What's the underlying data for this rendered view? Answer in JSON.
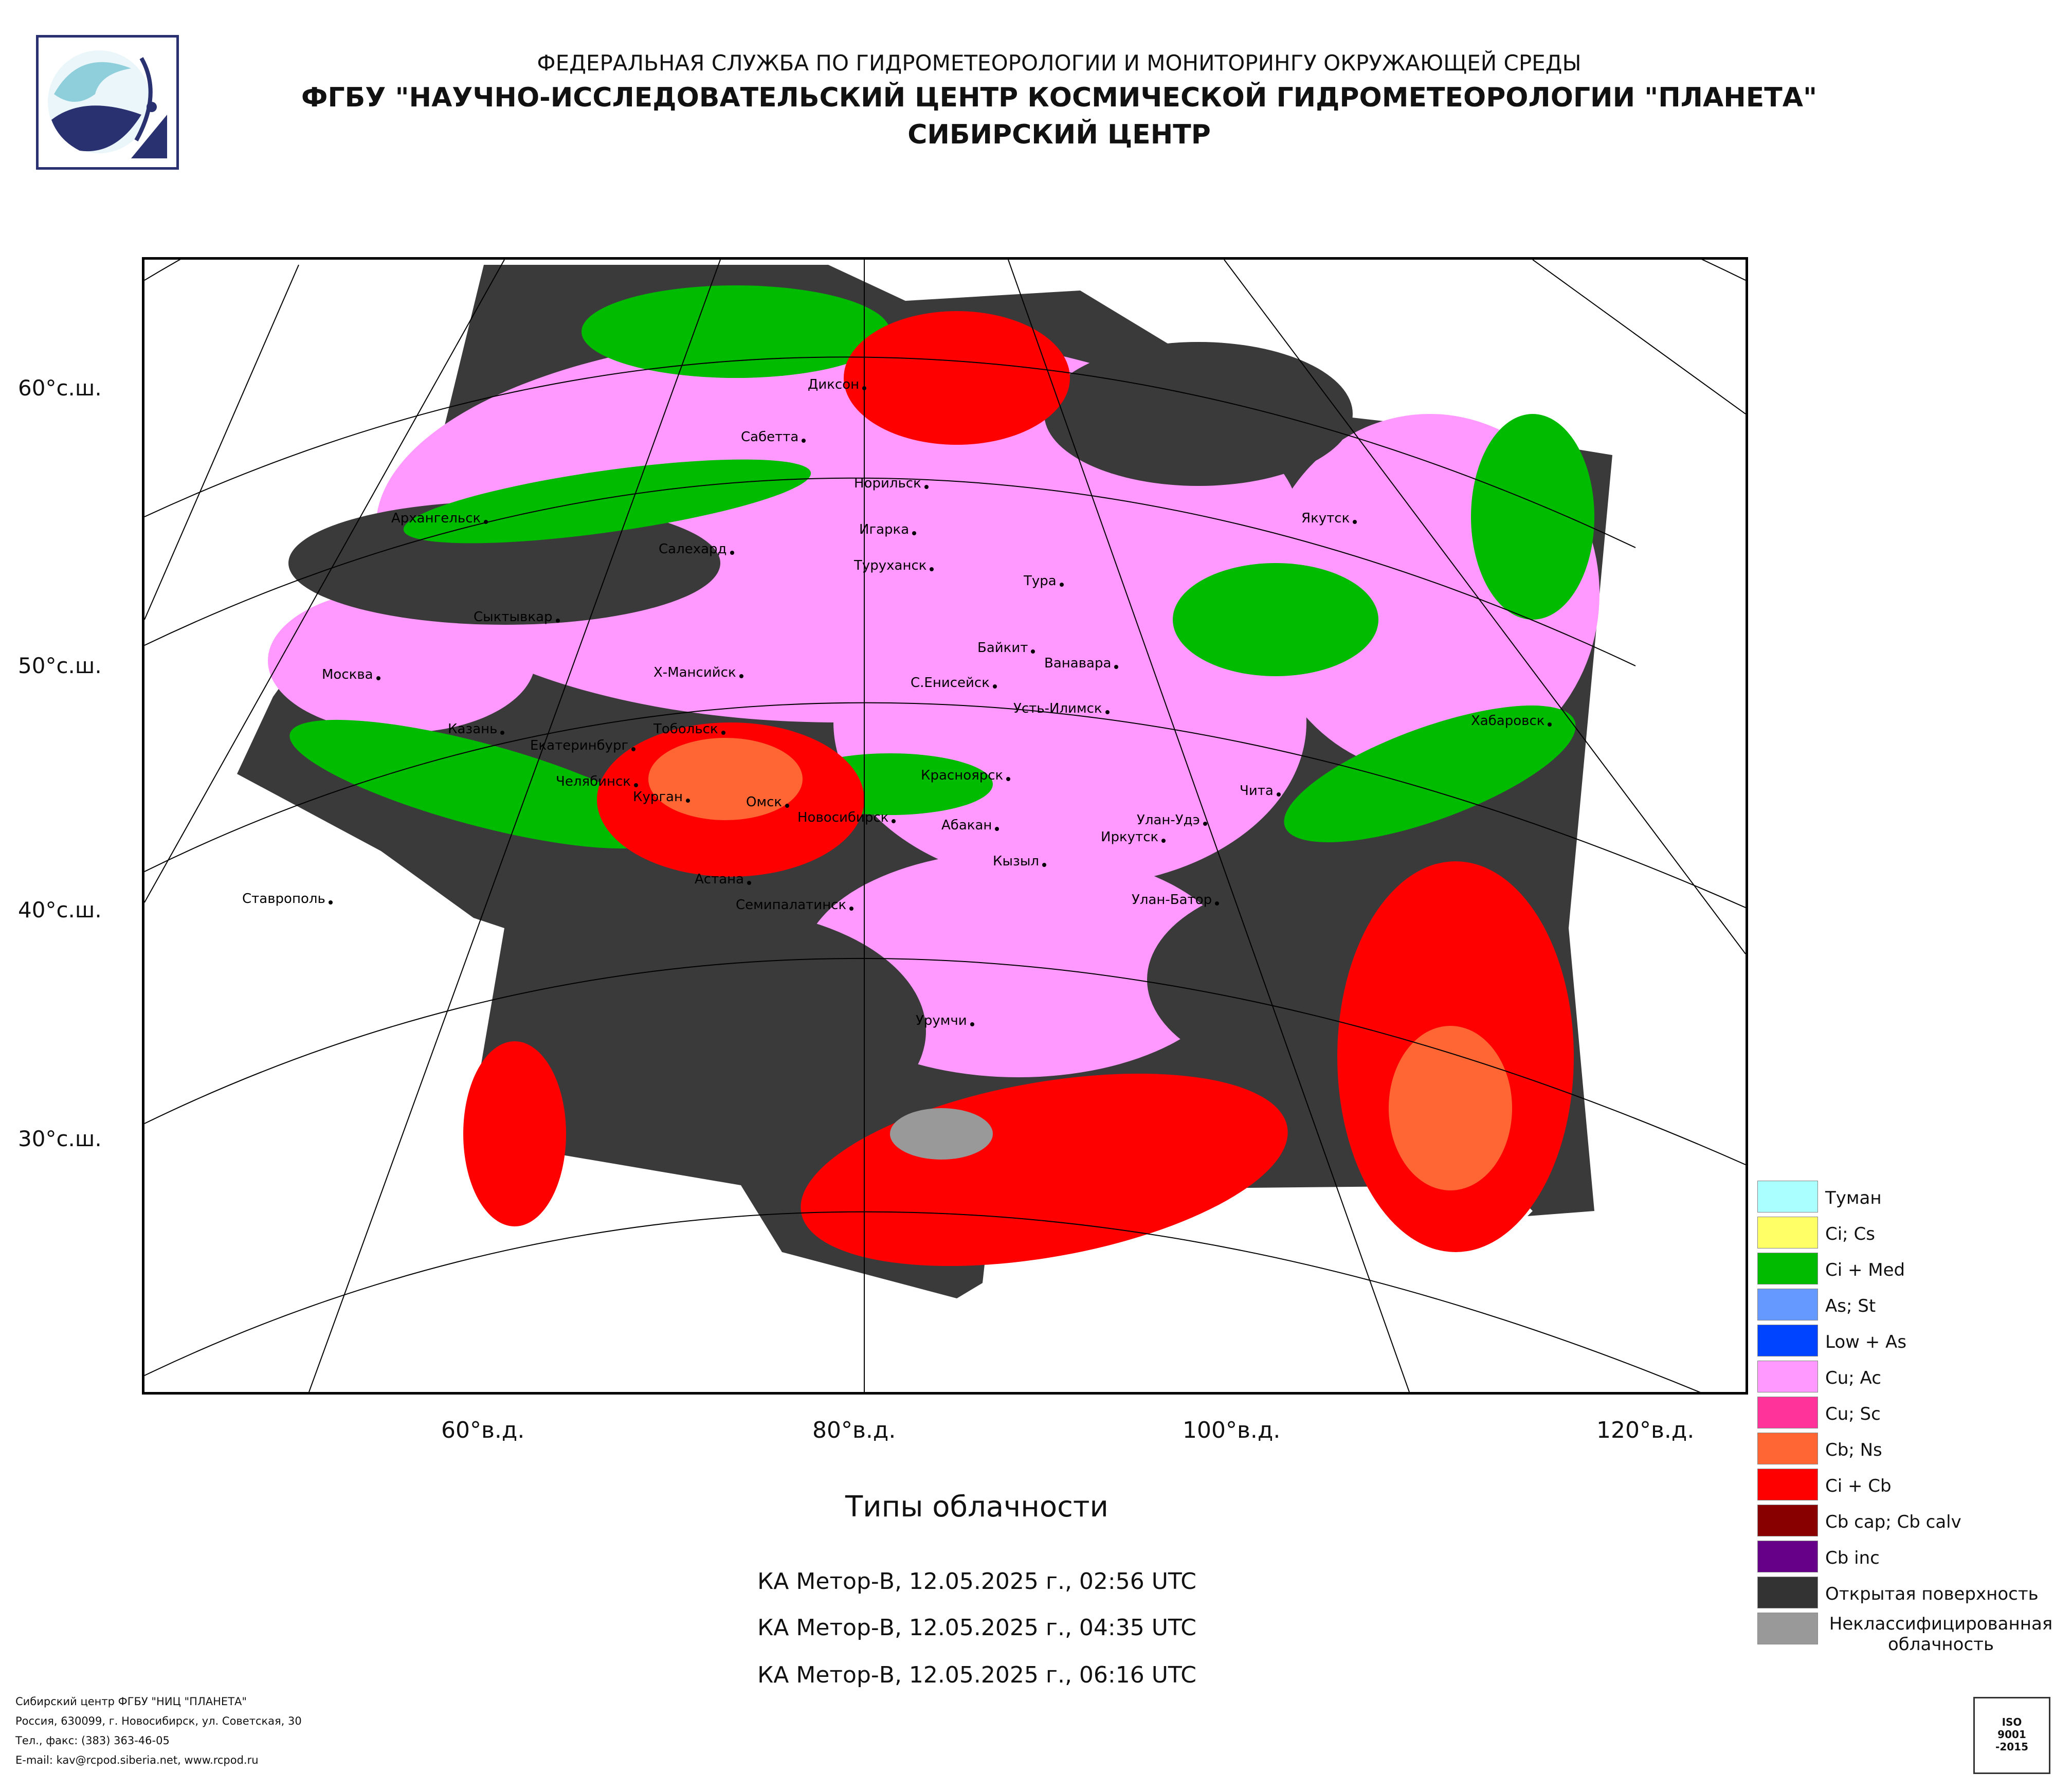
{
  "header": {
    "line1": "ФЕДЕРАЛЬНАЯ СЛУЖБА ПО ГИДРОМЕТЕОРОЛОГИИ И МОНИТОРИНГУ ОКРУЖАЮЩЕЙ СРЕДЫ",
    "line2": "ФГБУ \"НАУЧНО-ИССЛЕДОВАТЕЛЬСКИЙ ЦЕНТР КОСМИЧЕСКОЙ ГИДРОМЕТЕОРОЛОГИИ \"ПЛАНЕТА\"",
    "line3": "СИБИРСКИЙ ЦЕНТР"
  },
  "latitude_labels": [
    "60°с.ш.",
    "50°с.ш.",
    "40°с.ш.",
    "30°с.ш."
  ],
  "longitude_labels": [
    "60°в.д.",
    "80°в.д.",
    "100°в.д.",
    "120°в.д."
  ],
  "cities": [
    "Диксон",
    "Сабетта",
    "Норильск",
    "Архангельск",
    "Игарка",
    "Салехард",
    "Туруханск",
    "Якутск",
    "Тура",
    "Сыктывкар",
    "Байкит",
    "Ванавара",
    "Москва",
    "Х-Мансийск",
    "С.Енисейск",
    "Усть-Илимск",
    "Хабаровск",
    "Казань",
    "Тобольск",
    "Екатеринбург",
    "Красноярск",
    "Челябинск",
    "Чита",
    "Курган",
    "Омск",
    "Новосибирск",
    "Улан-Удэ",
    "Абакан",
    "Иркутск",
    "Кызыл",
    "Астана",
    "Ставрополь",
    "Семипалатинск",
    "Улан-Батор",
    "Урумчи"
  ],
  "caption": {
    "title": "Типы облачности",
    "passes": [
      "КА Метор-В, 12.05.2025 г., 02:56 UTC",
      "КА Метор-В, 12.05.2025 г., 04:35 UTC",
      "КА Метор-В, 12.05.2025 г., 06:16 UTC"
    ]
  },
  "legend": [
    {
      "label": "Туман",
      "color": "#aaffff"
    },
    {
      "label": "Ci; Cs",
      "color": "#ffff66"
    },
    {
      "label": "Ci + Med",
      "color": "#00bb00"
    },
    {
      "label": "As; St",
      "color": "#6699ff"
    },
    {
      "label": "Low + As",
      "color": "#0044ff"
    },
    {
      "label": "Cu; Ac",
      "color": "#ff99ff"
    },
    {
      "label": "Cu; Sc",
      "color": "#ff3399"
    },
    {
      "label": "Cb; Ns",
      "color": "#ff6633"
    },
    {
      "label": "Ci + Cb",
      "color": "#ff0000"
    },
    {
      "label": "Cb cap; Cb calv",
      "color": "#880000"
    },
    {
      "label": "Cb inc",
      "color": "#660088"
    },
    {
      "label": "Открытая поверхность",
      "color": "#333333"
    },
    {
      "label": "Неклассифицированная облачность",
      "color": "#999999"
    }
  ],
  "footer": [
    "Сибирский центр ФГБУ \"НИЦ \"ПЛАНЕТА\"",
    "Россия, 630099, г. Новосибирск, ул. Советская, 30",
    "Тел., факс: (383) 363-46-05",
    "E-mail: kav@rcpod.siberia.net, www.rcpod.ru"
  ],
  "iso_badge": {
    "line1": "ISO",
    "line2": "9001",
    "line3": "-2015"
  }
}
